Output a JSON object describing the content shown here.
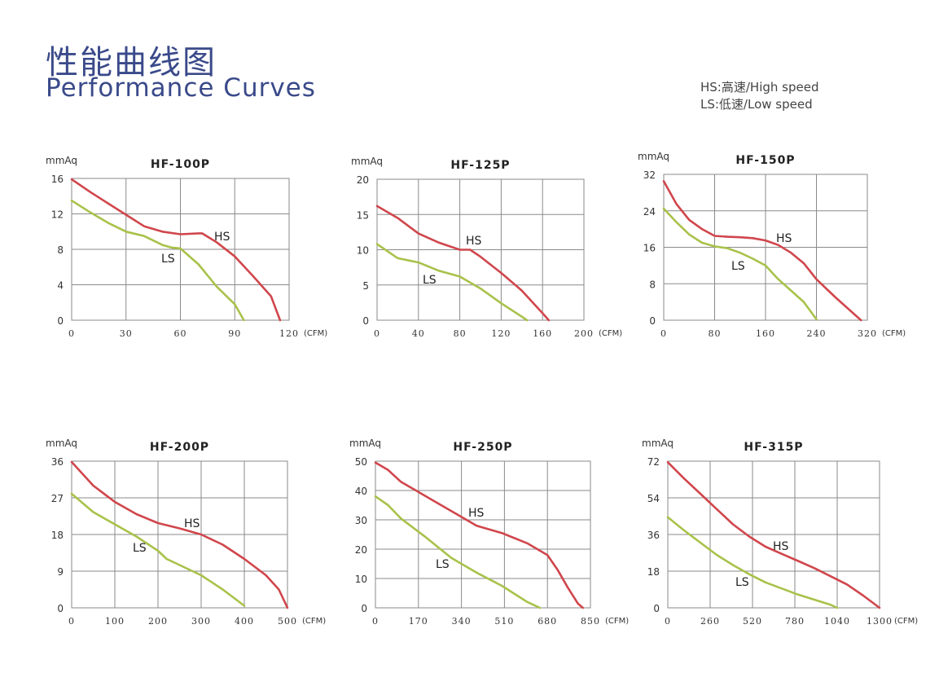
{
  "header": {
    "title_cn": "性能曲线图",
    "title_en": "Performance Curves"
  },
  "legend": {
    "hs": "HS:高速/High speed",
    "ls": "LS:低速/Low speed"
  },
  "colors": {
    "hs": "#d0464c",
    "ls": "#a8c24a"
  },
  "chart_data": [
    {
      "type": "line",
      "title": "HF-100P",
      "ylabel": "mmAq",
      "xlabel": "(CFM)",
      "xticks": [
        0,
        30,
        60,
        90,
        120
      ],
      "yticks": [
        0,
        4,
        8,
        12,
        16
      ],
      "xlim": [
        0,
        120
      ],
      "ylim": [
        0,
        16
      ],
      "hs_label": "HS",
      "ls_label": "LS",
      "series": [
        {
          "name": "HS",
          "x": [
            0,
            10,
            20,
            30,
            40,
            50,
            60,
            70,
            72,
            80,
            90,
            100,
            110,
            115
          ],
          "y": [
            15.9,
            14.5,
            13.2,
            11.9,
            10.6,
            10.0,
            9.7,
            9.8,
            9.8,
            8.8,
            7.2,
            5.0,
            2.7,
            0
          ]
        },
        {
          "name": "LS",
          "x": [
            0,
            10,
            20,
            30,
            40,
            50,
            55,
            60,
            70,
            80,
            90,
            95
          ],
          "y": [
            13.5,
            12.2,
            11.0,
            10.0,
            9.5,
            8.5,
            8.2,
            8.1,
            6.3,
            3.8,
            1.8,
            0
          ]
        }
      ]
    },
    {
      "type": "line",
      "title": "HF-125P",
      "ylabel": "mmAq",
      "xlabel": "(CFM)",
      "xticks": [
        0,
        40,
        80,
        120,
        160,
        200
      ],
      "yticks": [
        0,
        5,
        10,
        15,
        20
      ],
      "xlim": [
        0,
        200
      ],
      "ylim": [
        0,
        20
      ],
      "hs_label": "HS",
      "ls_label": "LS",
      "series": [
        {
          "name": "HS",
          "x": [
            0,
            20,
            40,
            60,
            80,
            90,
            100,
            120,
            140,
            160,
            166
          ],
          "y": [
            16.2,
            14.5,
            12.3,
            11.0,
            10.0,
            10.0,
            9.0,
            6.7,
            4.2,
            1.0,
            0
          ]
        },
        {
          "name": "LS",
          "x": [
            0,
            20,
            40,
            60,
            70,
            80,
            100,
            120,
            140,
            145
          ],
          "y": [
            10.8,
            8.8,
            8.2,
            7.0,
            6.6,
            6.2,
            4.5,
            2.4,
            0.5,
            0
          ]
        }
      ]
    },
    {
      "type": "line",
      "title": "HF-150P",
      "ylabel": "mmAq",
      "xlabel": "(CFM)",
      "xticks": [
        0,
        80,
        160,
        240,
        320
      ],
      "yticks": [
        0,
        8,
        16,
        24,
        32
      ],
      "xlim": [
        0,
        320
      ],
      "ylim": [
        0,
        32
      ],
      "hs_label": "HS",
      "ls_label": "LS",
      "series": [
        {
          "name": "HS",
          "x": [
            0,
            20,
            40,
            60,
            80,
            100,
            120,
            140,
            160,
            180,
            200,
            220,
            240,
            270,
            310
          ],
          "y": [
            30.5,
            25.5,
            22.0,
            20.0,
            18.5,
            18.3,
            18.2,
            18.0,
            17.5,
            16.5,
            14.8,
            12.5,
            9.0,
            5.0,
            0
          ]
        },
        {
          "name": "LS",
          "x": [
            0,
            20,
            40,
            60,
            80,
            100,
            120,
            140,
            160,
            180,
            200,
            220,
            240
          ],
          "y": [
            24.5,
            21.5,
            18.8,
            17.0,
            16.2,
            15.8,
            14.8,
            13.5,
            12.0,
            9.0,
            6.5,
            4.0,
            0.2
          ]
        }
      ]
    },
    {
      "type": "line",
      "title": "HF-200P",
      "ylabel": "mmAq",
      "xlabel": "(CFM)",
      "xticks": [
        0,
        100,
        200,
        300,
        400,
        500
      ],
      "yticks": [
        0,
        9,
        18,
        27,
        36
      ],
      "xlim": [
        0,
        500
      ],
      "ylim": [
        0,
        36
      ],
      "hs_label": "HS",
      "ls_label": "LS",
      "series": [
        {
          "name": "HS",
          "x": [
            0,
            50,
            100,
            150,
            200,
            250,
            300,
            350,
            400,
            450,
            480,
            500
          ],
          "y": [
            35.8,
            30.0,
            26.0,
            23.0,
            20.8,
            19.5,
            18.0,
            15.5,
            12.0,
            8.0,
            4.5,
            0
          ]
        },
        {
          "name": "LS",
          "x": [
            0,
            50,
            100,
            150,
            200,
            220,
            250,
            300,
            350,
            400
          ],
          "y": [
            28.0,
            23.5,
            20.5,
            17.5,
            14.0,
            12.0,
            10.5,
            8.0,
            4.5,
            0.5
          ]
        }
      ]
    },
    {
      "type": "line",
      "title": "HF-250P",
      "ylabel": "mmAq",
      "xlabel": "(CFM)",
      "xticks": [
        0,
        170,
        340,
        510,
        680,
        850
      ],
      "yticks": [
        0,
        10,
        20,
        30,
        40,
        50
      ],
      "xlim": [
        0,
        850
      ],
      "ylim": [
        0,
        50
      ],
      "hs_label": "HS",
      "ls_label": "LS",
      "series": [
        {
          "name": "HS",
          "x": [
            0,
            50,
            100,
            200,
            300,
            400,
            500,
            600,
            680,
            720,
            760,
            800,
            820
          ],
          "y": [
            49.5,
            47.0,
            43.0,
            38.0,
            33.0,
            28.0,
            25.5,
            22.0,
            18.0,
            13.0,
            7.0,
            1.5,
            0
          ]
        },
        {
          "name": "LS",
          "x": [
            0,
            50,
            100,
            200,
            300,
            340,
            400,
            500,
            600,
            650
          ],
          "y": [
            38.0,
            35.0,
            30.5,
            24.0,
            17.0,
            15.0,
            12.0,
            7.5,
            2.0,
            0
          ]
        }
      ]
    },
    {
      "type": "line",
      "title": "HF-315P",
      "ylabel": "mmAq",
      "xlabel": "(CFM)",
      "xticks": [
        0,
        260,
        520,
        780,
        1040,
        1300
      ],
      "yticks": [
        0,
        18,
        36,
        54,
        72
      ],
      "xlim": [
        0,
        1300
      ],
      "ylim": [
        0,
        72
      ],
      "hs_label": "HS",
      "ls_label": "LS",
      "series": [
        {
          "name": "HS",
          "x": [
            0,
            100,
            200,
            300,
            400,
            500,
            600,
            700,
            800,
            900,
            1000,
            1100,
            1200,
            1250,
            1300
          ],
          "y": [
            71.5,
            63.5,
            56.0,
            48.5,
            41.0,
            35.0,
            30.0,
            26.5,
            23.0,
            19.5,
            15.5,
            11.5,
            6.0,
            3.0,
            0
          ]
        },
        {
          "name": "LS",
          "x": [
            0,
            100,
            200,
            300,
            400,
            500,
            600,
            700,
            800,
            900,
            1000,
            1040
          ],
          "y": [
            44.5,
            38.0,
            32.0,
            26.0,
            21.0,
            16.5,
            12.5,
            9.5,
            6.5,
            4.0,
            1.5,
            0
          ]
        }
      ]
    }
  ]
}
